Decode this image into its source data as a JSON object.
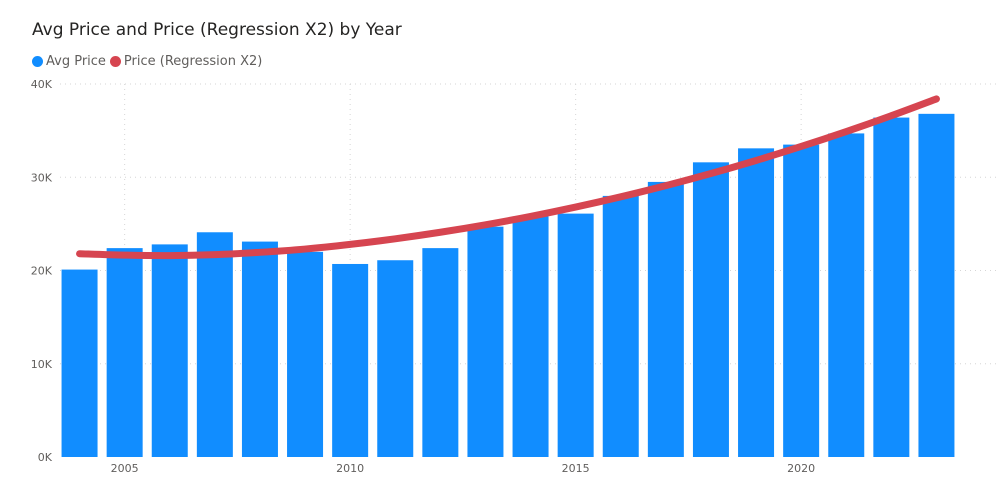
{
  "chart_data": {
    "type": "bar",
    "title": "Avg Price and Price (Regression X2) by Year",
    "xlabel": "",
    "ylabel": "",
    "ylim": [
      0,
      40000
    ],
    "grid": true,
    "legend_position": "top-left",
    "x": [
      2004,
      2005,
      2006,
      2007,
      2008,
      2009,
      2010,
      2011,
      2012,
      2013,
      2014,
      2015,
      2016,
      2017,
      2018,
      2019,
      2020,
      2021,
      2022,
      2023
    ],
    "x_ticks": [
      2005,
      2010,
      2015,
      2020
    ],
    "y_ticks": [
      {
        "value": 0,
        "label": "0K"
      },
      {
        "value": 10000,
        "label": "10K"
      },
      {
        "value": 20000,
        "label": "20K"
      },
      {
        "value": 30000,
        "label": "30K"
      },
      {
        "value": 40000,
        "label": "40K"
      }
    ],
    "series": [
      {
        "name": "Avg Price",
        "type": "bar",
        "color": "#118DFF",
        "values": [
          20100,
          22400,
          22800,
          24100,
          23100,
          22000,
          20700,
          21100,
          22400,
          24700,
          25800,
          26100,
          28000,
          29500,
          31600,
          33100,
          33500,
          34700,
          36400,
          36800
        ]
      },
      {
        "name": "Price (Regression X2)",
        "type": "line",
        "color": "#D64550",
        "values": [
          21800,
          21650,
          21600,
          21700,
          21950,
          22300,
          22800,
          23400,
          24100,
          24900,
          25800,
          26800,
          27900,
          29100,
          30400,
          31800,
          33300,
          34900,
          36600,
          38400
        ]
      }
    ]
  }
}
